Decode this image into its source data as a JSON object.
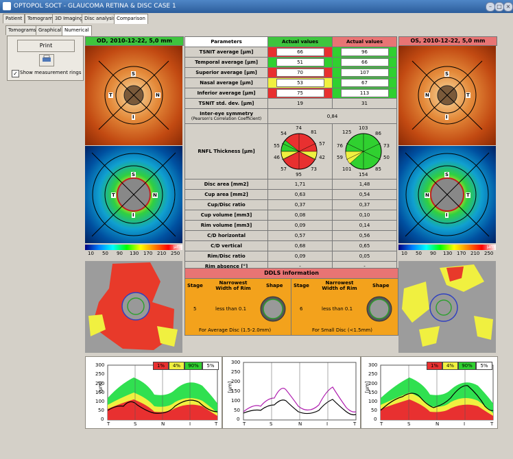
{
  "window": {
    "title": "OPTOPOL SOCT - GLAUCOMA RETINA & DISC CASE 1"
  },
  "main_tabs": [
    "Patient",
    "Tomogram",
    "3D Imaging",
    "Disc analysis",
    "Comparison"
  ],
  "sub_tabs": [
    "Tomograms",
    "Graphical",
    "Numerical"
  ],
  "left_panel": {
    "print_label": "Print",
    "checkbox_label": "Show measurement rings",
    "checkbox_checked": true
  },
  "od_header": "OD, 2010-12-22, 5,0 mm",
  "os_header": "OS, 2010-12-22, 5,0 mm",
  "quadrants": {
    "s": "S",
    "t": "T",
    "n": "N",
    "i": "I"
  },
  "colorbar": {
    "ticks": [
      "10",
      "50",
      "90",
      "130",
      "170",
      "210",
      "250"
    ],
    "unit": "µm"
  },
  "param_table": {
    "col_params": "Parameters",
    "col_od": "Actual values",
    "col_os": "Actual values",
    "rows": [
      {
        "label": "TSNIT average [µm]",
        "od": "66",
        "os": "96"
      },
      {
        "label": "Temporal average [µm]",
        "od": "51",
        "os": "66"
      },
      {
        "label": "Superior average [µm]",
        "od": "70",
        "os": "107"
      },
      {
        "label": "Nasal average [µm]",
        "od": "53",
        "os": "67"
      },
      {
        "label": "Inferior average [µm]",
        "od": "75",
        "os": "113"
      },
      {
        "label": "TSNIT std. dev. [µm]",
        "od": "19",
        "os": "31"
      }
    ],
    "symmetry_label": "Inter-eye symmetry",
    "symmetry_sub": "(Pearson's Correlation Coefficient)",
    "symmetry_value": "0,84",
    "rnfl_label": "RNFL Thickness [µm]",
    "rnfl_od": [
      "74",
      "81",
      "57",
      "42",
      "73",
      "95",
      "57",
      "46",
      "55",
      "54"
    ],
    "rnfl_os": [
      "103",
      "86",
      "73",
      "50",
      "85",
      "154",
      "101",
      "59",
      "76",
      "125"
    ],
    "rows2": [
      {
        "label": "Disc area [mm2]",
        "od": "1,71",
        "os": "1,48"
      },
      {
        "label": "Cup area [mm2]",
        "od": "0,63",
        "os": "0,54"
      },
      {
        "label": "Cup/Disc ratio",
        "od": "0,37",
        "os": "0,37"
      },
      {
        "label": "Cup volume [mm3]",
        "od": "0,08",
        "os": "0,10"
      },
      {
        "label": "Rim volume [mm3]",
        "od": "0,09",
        "os": "0,14"
      },
      {
        "label": "C/D horizontal",
        "od": "0,57",
        "os": "0,56"
      },
      {
        "label": "C/D vertical",
        "od": "0,68",
        "os": "0,65"
      },
      {
        "label": "Rim/Disc ratio",
        "od": "0,09",
        "os": "0,05"
      },
      {
        "label": "Rim absence [°]",
        "od": "-",
        "os": "-"
      }
    ]
  },
  "ddls": {
    "title": "DDLS information",
    "col_stage": "Stage",
    "col_width": "Narrowest Width of Rim",
    "col_shape": "Shape",
    "od_stage": "5",
    "od_width": "less than 0.1",
    "os_stage": "6",
    "os_width": "less than 0.1",
    "od_footer": "For Average Disc (1.5-2.0mm)",
    "os_footer": "For Small Disc (<1.5mm)"
  },
  "graphs": {
    "y_ticks": [
      "300",
      "250",
      "200",
      "150",
      "100",
      "50",
      "0"
    ],
    "y_label": "[µm]",
    "x_ticks": [
      "T",
      "S",
      "N",
      "I",
      "T"
    ],
    "legend": [
      "1%",
      "4%",
      "90%",
      "5%"
    ]
  },
  "colors": {
    "title": "#2c5d9b",
    "header_green": "#3ec43e",
    "header_red": "#e87474",
    "red": "#e83030",
    "yellow": "#f0f040",
    "green": "#30d030",
    "ddls": "#f3a21c"
  }
}
